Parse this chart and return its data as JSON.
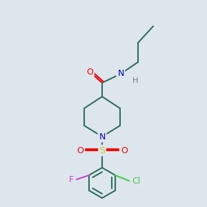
{
  "bg_color": "#dce6ec",
  "bond_color": "#2d6e5a",
  "atom_colors": {
    "N": "#0000dd",
    "O": "#ff0000",
    "S": "#cccc00",
    "F": "#cc44cc",
    "Cl": "#44cc44",
    "H": "#777777",
    "C": "#2d6e5a"
  }
}
